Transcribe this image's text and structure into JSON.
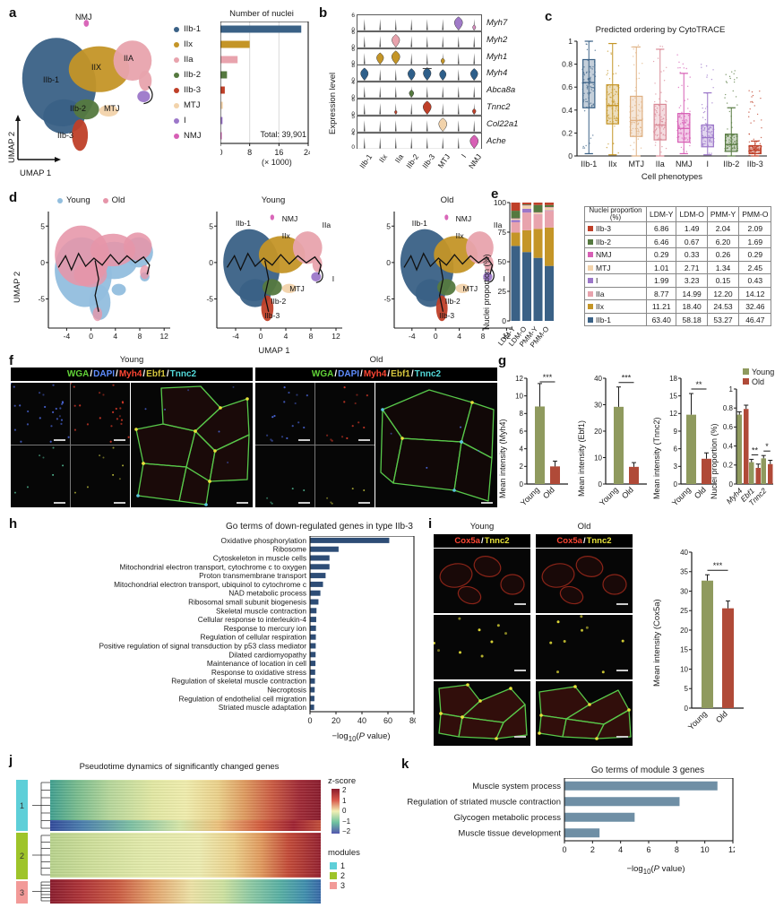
{
  "palette": {
    "IIb-1": "#3a6186",
    "IIx": "#c49527",
    "IIa": "#e8a3ad",
    "IIb-2": "#55793f",
    "IIb-3": "#bf3f28",
    "MTJ": "#f2d3ab",
    "I": "#9c77c9",
    "NMJ": "#d75fb5",
    "young_bar": "#8f9a5e",
    "old_bar": "#b04a38",
    "young_pt": "#92bede",
    "old_pt": "#e695a9",
    "go_bar": "#2e4d76",
    "module_bar": "#6f8fa5",
    "module1": "#5ecfd8",
    "module2": "#9ec42a",
    "module3": "#f29a98"
  },
  "common": {
    "plabel": {
      "prefix": "−log",
      "sub": "10",
      "open": "(",
      "p": "P",
      "close": " value)"
    }
  },
  "panels": {
    "a": {
      "label": "a",
      "axis": {
        "x": "UMAP 1",
        "y": "UMAP 2"
      },
      "umap_labels": {
        "nmj": "NMJ",
        "iib1": "IIb-1",
        "iix": "IIX",
        "iia": "IIA",
        "iib2": "IIb-2",
        "mtj": "MTJ",
        "iib3": "IIb-3"
      },
      "legend": [
        "IIb-1",
        "IIx",
        "IIa",
        "IIb-2",
        "IIb-3",
        "MTJ",
        "I",
        "NMJ"
      ],
      "chart_data": {
        "type": "bar",
        "orientation": "horizontal",
        "title": "Number of nuclei",
        "categories": [
          "IIb-1",
          "IIx",
          "IIa",
          "IIb-2",
          "IIb-3",
          "MTJ",
          "I",
          "NMJ"
        ],
        "values_x1000": [
          22.1,
          8.0,
          4.7,
          1.8,
          1.2,
          0.66,
          0.58,
          0.25
        ],
        "xticks": [
          0,
          8,
          16,
          24
        ],
        "xlim": [
          0,
          24
        ],
        "x_unit": "(× 1000)",
        "annotation": "Total: 39,901"
      }
    },
    "b": {
      "label": "b",
      "ylabel": "Expression level",
      "categories": [
        "IIb-1",
        "IIx",
        "IIa",
        "IIb-2",
        "IIb-3",
        "MTJ",
        "I",
        "NMJ"
      ],
      "chart_data": {
        "type": "violin",
        "rows": [
          {
            "gene": "Myh7",
            "ymax": 6,
            "violins": [
              {
                "cat": "I",
                "size": 1,
                "color": "#a07ac8"
              },
              {
                "cat": "NMJ",
                "size": 0.38,
                "color": "#d98fc2"
              }
            ]
          },
          {
            "gene": "Myh2",
            "ymax": 6,
            "violins": [
              {
                "cat": "IIa",
                "size": 0.95,
                "color": "#e8a3ad"
              }
            ]
          },
          {
            "gene": "Myh1",
            "ymax": 6,
            "violins": [
              {
                "cat": "IIx",
                "size": 0.85,
                "color": "#c49527"
              },
              {
                "cat": "IIa",
                "size": 1,
                "color": "#c49527"
              },
              {
                "cat": "MTJ",
                "size": 0.45,
                "color": "#c49527"
              }
            ]
          },
          {
            "gene": "Myh4",
            "ymax": 8,
            "violins": [
              {
                "cat": "IIb-1",
                "size": 0.92,
                "color": "#2e5f8a"
              },
              {
                "cat": "IIb-2",
                "size": 0.88,
                "color": "#2e5f8a"
              },
              {
                "cat": "IIb-3",
                "size": 0.95,
                "color": "#2e5f8a",
                "flat": true
              },
              {
                "cat": "MTJ",
                "size": 0.8,
                "color": "#2e5f8a"
              },
              {
                "cat": "NMJ",
                "size": 0.88,
                "color": "#2e5f8a"
              }
            ]
          },
          {
            "gene": "Abca8a",
            "ymax": 4,
            "violins": [
              {
                "cat": "IIb-2",
                "size": 0.55,
                "color": "#55793f"
              }
            ]
          },
          {
            "gene": "Tnnc2",
            "ymax": 6,
            "violins": [
              {
                "cat": "IIb-3",
                "size": 1,
                "color": "#bf3f28"
              },
              {
                "cat": "IIa",
                "size": 0.3,
                "color": "#bf3f28"
              },
              {
                "cat": "NMJ",
                "size": 0.42,
                "color": "#bf3f28"
              }
            ]
          },
          {
            "gene": "Col22a1",
            "ymax": 5,
            "violins": [
              {
                "cat": "MTJ",
                "size": 1,
                "color": "#f2d3ab"
              }
            ]
          },
          {
            "gene": "Ache",
            "ymax": 4,
            "violins": [
              {
                "cat": "NMJ",
                "size": 1,
                "color": "#d75fb5"
              }
            ]
          }
        ]
      }
    },
    "c": {
      "label": "c",
      "title": "Predicted ordering by CytoTRACE",
      "xlabel": "Cell phenotypes",
      "chart_data": {
        "type": "box",
        "ylim": [
          0,
          1
        ],
        "yticks": [
          0,
          0.2,
          0.4,
          0.6,
          0.8,
          1
        ],
        "boxes": [
          {
            "label": "IIb-1",
            "color": "#3a6186",
            "wlo": 0.02,
            "q1": 0.42,
            "med": 0.64,
            "q3": 0.84,
            "whi": 1.0,
            "jmax": 1.0
          },
          {
            "label": "IIx",
            "color": "#c49527",
            "wlo": 0.01,
            "q1": 0.28,
            "med": 0.44,
            "q3": 0.62,
            "whi": 0.98,
            "jmax": 1.0
          },
          {
            "label": "MTJ",
            "color": "#dfb183",
            "wlo": 0.0,
            "q1": 0.17,
            "med": 0.31,
            "q3": 0.52,
            "whi": 0.95,
            "jmax": 1.0
          },
          {
            "label": "IIa",
            "color": "#d98a97",
            "wlo": 0.0,
            "q1": 0.14,
            "med": 0.27,
            "q3": 0.45,
            "whi": 0.93,
            "jmax": 1.0
          },
          {
            "label": "NMJ",
            "color": "#d75fb5",
            "wlo": 0.02,
            "q1": 0.12,
            "med": 0.24,
            "q3": 0.37,
            "whi": 0.72,
            "jmax": 0.9
          },
          {
            "label": "I",
            "color": "#9c77c9",
            "wlo": 0.01,
            "q1": 0.08,
            "med": 0.16,
            "q3": 0.27,
            "whi": 0.55,
            "jmax": 0.85
          },
          {
            "label": "IIb-2",
            "color": "#55793f",
            "wlo": 0.0,
            "q1": 0.04,
            "med": 0.1,
            "q3": 0.19,
            "whi": 0.42,
            "jmax": 0.75
          },
          {
            "label": "IIb-3",
            "color": "#bf3f28",
            "wlo": 0.0,
            "q1": 0.02,
            "med": 0.05,
            "q3": 0.09,
            "whi": 0.13,
            "jmax": 0.6
          }
        ]
      }
    },
    "d": {
      "label": "d",
      "legend": [
        {
          "label": "Young",
          "color": "#92bede"
        },
        {
          "label": "Old",
          "color": "#e695a9"
        }
      ],
      "plot_titles": [
        "",
        "Young",
        "Old"
      ],
      "xlabel": "UMAP 1",
      "ylabel": "UMAP 2",
      "xticks": [
        -4,
        0,
        4,
        8,
        12
      ],
      "yticks": [
        5,
        0,
        -5
      ],
      "cluster_labels": [
        "IIb-1",
        "NMJ",
        "IIx",
        "IIa",
        "I",
        "MTJ",
        "IIb-2",
        "IIb-3"
      ]
    },
    "e": {
      "label": "e",
      "ylabel": "Nuclei proportion (%)",
      "chart_data": {
        "type": "stacked_bar",
        "categories": [
          "LDM-Y",
          "LDM-O",
          "PMM-Y",
          "PMM-O"
        ],
        "yticks": [
          0,
          25,
          50,
          75,
          100
        ],
        "table_header": [
          "Nuclei proportion (%)",
          "LDM-Y",
          "LDM-O",
          "PMM-Y",
          "PMM-O"
        ],
        "rows": [
          {
            "name": "IIb-3",
            "color": "#bf3f28",
            "values": [
              6.86,
              1.49,
              2.04,
              2.09
            ]
          },
          {
            "name": "IIb-2",
            "color": "#55793f",
            "values": [
              6.46,
              0.67,
              6.2,
              1.69
            ]
          },
          {
            "name": "NMJ",
            "color": "#d75fb5",
            "values": [
              0.29,
              0.33,
              0.26,
              0.29
            ]
          },
          {
            "name": "MTJ",
            "color": "#f2d3ab",
            "values": [
              1.01,
              2.71,
              1.34,
              2.45
            ]
          },
          {
            "name": "I",
            "color": "#9c77c9",
            "values": [
              1.99,
              3.23,
              0.15,
              0.43
            ]
          },
          {
            "name": "IIa",
            "color": "#e8a3ad",
            "values": [
              8.77,
              14.99,
              12.2,
              14.12
            ]
          },
          {
            "name": "IIx",
            "color": "#c49527",
            "values": [
              11.21,
              18.4,
              24.53,
              32.46
            ]
          },
          {
            "name": "IIb-1",
            "color": "#3a6186",
            "values": [
              63.4,
              58.18,
              53.27,
              46.47
            ]
          }
        ]
      }
    },
    "f": {
      "label": "f",
      "groups": [
        {
          "title": "Young"
        },
        {
          "title": "Old"
        }
      ],
      "channels": [
        {
          "name": "WGA",
          "color": "#62d438"
        },
        {
          "name": "DAPI",
          "color": "#5f8dff"
        },
        {
          "name": "Myh4",
          "color": "#ff4633"
        },
        {
          "name": "Ebf1",
          "color": "#d6c73e"
        },
        {
          "name": "Tnnc2",
          "color": "#52d8d8"
        }
      ]
    },
    "g": {
      "label": "g",
      "legend": {
        "young": "Young",
        "old": "Old"
      },
      "chart_data": [
        {
          "type": "bar",
          "ylabel": "Mean intensity (Myh4)",
          "ymax": 12,
          "yticks": [
            0,
            2,
            4,
            6,
            8,
            10,
            12
          ],
          "pairs": [
            {
              "sig": "***",
              "bars": [
                {
                  "label": "Young",
                  "v": 8.8,
                  "e": 2.6
                },
                {
                  "label": "Old",
                  "v": 2.0,
                  "e": 0.6
                }
              ]
            }
          ]
        },
        {
          "type": "bar",
          "ylabel": "Mean intensity (Ebf1)",
          "ymax": 40,
          "yticks": [
            0,
            10,
            20,
            30,
            40
          ],
          "pairs": [
            {
              "sig": "***",
              "bars": [
                {
                  "label": "Young",
                  "v": 29.2,
                  "e": 7.5
                },
                {
                  "label": "Old",
                  "v": 6.5,
                  "e": 1.6
                }
              ]
            }
          ]
        },
        {
          "type": "bar",
          "ylabel": "Mean intensity (Tnnc2)",
          "ymax": 18,
          "yticks": [
            0,
            3,
            6,
            9,
            12,
            15,
            18
          ],
          "pairs": [
            {
              "sig": "**",
              "bars": [
                {
                  "label": "Young",
                  "v": 11.8,
                  "e": 3.6
                },
                {
                  "label": "Old",
                  "v": 4.3,
                  "e": 1.0
                }
              ]
            }
          ]
        },
        {
          "type": "bar",
          "ylabel": "Nuclei proportion (%)",
          "ymax": 1,
          "yticks": [
            0,
            0.2,
            0.4,
            0.6,
            0.8,
            1
          ],
          "legend": true,
          "pairs": [
            {
              "label": "Myh4",
              "bars": [
                {
                  "v": 0.73,
                  "e": 0.03
                },
                {
                  "v": 0.79,
                  "e": 0.04
                }
              ]
            },
            {
              "label": "Ebf1",
              "sig": "**",
              "bars": [
                {
                  "v": 0.23,
                  "e": 0.03
                },
                {
                  "v": 0.17,
                  "e": 0.04
                }
              ]
            },
            {
              "label": "Tnnc2",
              "sig": "*",
              "bars": [
                {
                  "v": 0.27,
                  "e": 0.03
                },
                {
                  "v": 0.21,
                  "e": 0.04
                }
              ]
            }
          ]
        }
      ]
    },
    "h": {
      "label": "h",
      "title": "Go terms of down-regulated genes in type IIb-3",
      "chart_data": {
        "type": "bar",
        "orientation": "horizontal",
        "xlim": [
          0,
          80
        ],
        "xticks": [
          0,
          20,
          40,
          60,
          80
        ],
        "terms": [
          "Oxidative phosphorylation",
          "Ribosome",
          "Cytoskeleton in muscle cells",
          "Mitochondrial electron transport, cytochrome c to oxygen",
          "Proton transmembrane transport",
          "Mitochondrial electron transport, ubiquinol to cytochrome c",
          "NAD metabolic process",
          "Ribosomal small subunit biogenesis",
          "Skeletal muscle contraction",
          "Cellular response to interleukin-4",
          "Response to mercury ion",
          "Regulation of cellular respiration",
          "Positive regulation of signal transduction by p53 class mediator",
          "Dilated cardiomyopathy",
          "Maintenance of location in cell",
          "Response to oxidative stress",
          "Regulation of skeletal muscle contraction",
          "Necroptosis",
          "Regulation of endothelial cell migration",
          "Striated muscle adaptation"
        ],
        "values": [
          61,
          22,
          15,
          15,
          12,
          10,
          8,
          6.5,
          5,
          4.8,
          4.6,
          4.5,
          4.4,
          4.3,
          4.2,
          4.0,
          3.8,
          3.6,
          3.4,
          3.2
        ]
      }
    },
    "i": {
      "label": "i",
      "col_titles": [
        "Young",
        "Old"
      ],
      "channels": [
        {
          "name": "Cox5a",
          "color": "#ff4633"
        },
        {
          "name": "Tnnc2",
          "color": "#e8e23a"
        }
      ],
      "chart_data": {
        "type": "bar",
        "ylabel": "Mean intensity (Cox5a)",
        "ymax": 40,
        "yticks": [
          0,
          5,
          10,
          15,
          20,
          25,
          30,
          35,
          40
        ],
        "pairs": [
          {
            "sig": "***",
            "bars": [
              {
                "label": "Young",
                "v": 32.7,
                "e": 1.5
              },
              {
                "label": "Old",
                "v": 25.6,
                "e": 1.9
              }
            ]
          }
        ]
      }
    },
    "j": {
      "label": "j",
      "title": "Pseudotime dynamics of significantly changed genes",
      "zscore": {
        "title": "z-score",
        "ticks": [
          "2",
          "1",
          "0",
          "−1",
          "−2"
        ]
      },
      "modules": {
        "title": "modules",
        "items": [
          {
            "label": "1",
            "color": "#5ecfd8"
          },
          {
            "label": "2",
            "color": "#9ec42a"
          },
          {
            "label": "3",
            "color": "#f29a98"
          }
        ]
      },
      "module_blocks": [
        {
          "label": "1"
        },
        {
          "label": "2"
        },
        {
          "label": "3"
        }
      ]
    },
    "k": {
      "label": "k",
      "title": "Go terms of module 3 genes",
      "chart_data": {
        "type": "bar",
        "orientation": "horizontal",
        "xlim": [
          0,
          12
        ],
        "xticks": [
          0,
          2,
          4,
          6,
          8,
          10,
          12
        ],
        "terms": [
          "Muscle system process",
          "Regulation of striated muscle contraction",
          "Glycogen metabolic process",
          "Muscle tissue development"
        ],
        "values": [
          10.9,
          8.2,
          5.0,
          2.5
        ]
      }
    }
  }
}
